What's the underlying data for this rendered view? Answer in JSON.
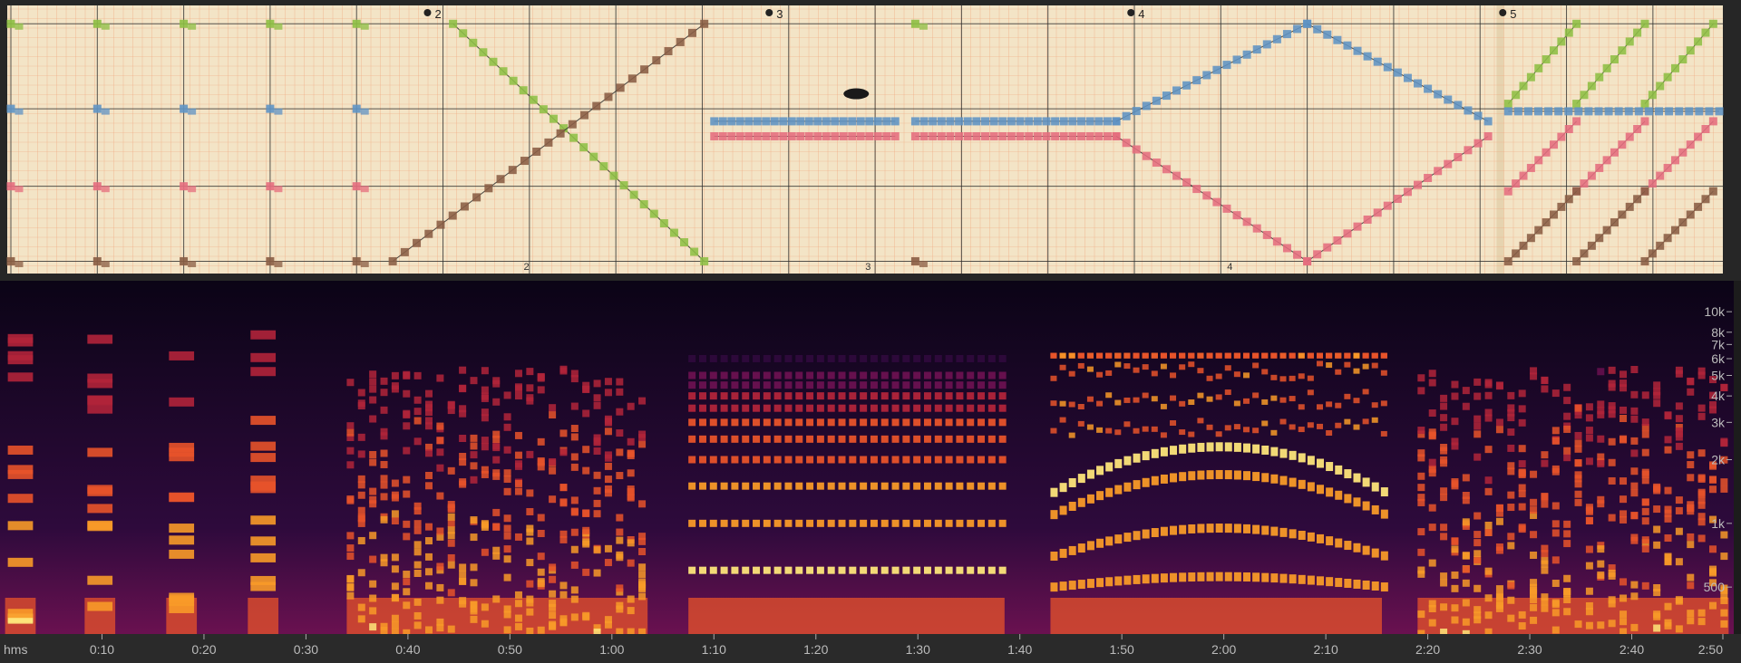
{
  "chart_data": [
    {
      "type": "scatter",
      "source": "hand-drawn graph-paper score",
      "section_markers": [
        "2",
        "3",
        "4",
        "5"
      ],
      "bottom_markers": [
        "2",
        "3",
        "4"
      ],
      "section_starts_s": [
        42,
        76,
        112,
        149
      ],
      "colors": {
        "green": "#8ebf44",
        "blue": "#5f93c4",
        "red": "#e56d7e",
        "brown": "#8a5d44",
        "paper": "#f3e4c6",
        "grid_minor": "#f0a27a",
        "grid_major": "#2d2d2d"
      },
      "series": [
        {
          "color": "green",
          "segments": [
            {
              "kind": "pulses",
              "start": 0,
              "end": 40,
              "step": 8.6,
              "level": 0.97
            },
            {
              "kind": "line",
              "t0": 44,
              "v0": 0.97,
              "t1": 69,
              "v1": 0.02,
              "step": 1.0
            },
            {
              "kind": "pulses",
              "start": 90,
              "end": 90,
              "step": 10,
              "level": 0.97
            },
            {
              "kind": "line",
              "t0": 149,
              "v0": 0.65,
              "t1": 155.8,
              "v1": 0.97,
              "step": 0.75
            },
            {
              "kind": "line",
              "t0": 155.8,
              "v0": 0.65,
              "t1": 162.6,
              "v1": 0.97,
              "step": 0.75
            },
            {
              "kind": "line",
              "t0": 162.6,
              "v0": 0.65,
              "t1": 169.4,
              "v1": 0.97,
              "step": 0.75
            }
          ]
        },
        {
          "color": "blue",
          "segments": [
            {
              "kind": "pulses",
              "start": 0,
              "end": 40,
              "step": 8.6,
              "level": 0.63
            },
            {
              "kind": "line",
              "t0": 70,
              "v0": 0.58,
              "t1": 88,
              "v1": 0.58,
              "step": 0.86
            },
            {
              "kind": "line",
              "t0": 90,
              "v0": 0.58,
              "t1": 110,
              "v1": 0.58,
              "step": 0.86
            },
            {
              "kind": "line",
              "t0": 110,
              "v0": 0.58,
              "t1": 129,
              "v1": 0.97,
              "step": 1.0
            },
            {
              "kind": "line",
              "t0": 129,
              "v0": 0.97,
              "t1": 147,
              "v1": 0.58,
              "step": 1.0
            },
            {
              "kind": "line",
              "t0": 149,
              "v0": 0.62,
              "t1": 170,
              "v1": 0.62,
              "step": 1.0
            }
          ]
        },
        {
          "color": "red",
          "segments": [
            {
              "kind": "pulses",
              "start": 0,
              "end": 40,
              "step": 8.6,
              "level": 0.32
            },
            {
              "kind": "line",
              "t0": 70,
              "v0": 0.52,
              "t1": 88,
              "v1": 0.52,
              "step": 0.86
            },
            {
              "kind": "line",
              "t0": 90,
              "v0": 0.52,
              "t1": 110,
              "v1": 0.52,
              "step": 0.86
            },
            {
              "kind": "line",
              "t0": 110,
              "v0": 0.52,
              "t1": 129,
              "v1": 0.02,
              "step": 1.0
            },
            {
              "kind": "line",
              "t0": 129,
              "v0": 0.02,
              "t1": 147,
              "v1": 0.52,
              "step": 1.0
            },
            {
              "kind": "line",
              "t0": 149,
              "v0": 0.3,
              "t1": 155.8,
              "v1": 0.58,
              "step": 0.75
            },
            {
              "kind": "line",
              "t0": 155.8,
              "v0": 0.3,
              "t1": 162.6,
              "v1": 0.58,
              "step": 0.75
            },
            {
              "kind": "line",
              "t0": 162.6,
              "v0": 0.3,
              "t1": 169.4,
              "v1": 0.58,
              "step": 0.75
            }
          ]
        },
        {
          "color": "brown",
          "segments": [
            {
              "kind": "pulses",
              "start": 0,
              "end": 40,
              "step": 8.6,
              "level": 0.02
            },
            {
              "kind": "line",
              "t0": 38,
              "v0": 0.02,
              "t1": 69,
              "v1": 0.97,
              "step": 1.2
            },
            {
              "kind": "pulses",
              "start": 90,
              "end": 90,
              "step": 10,
              "level": 0.02
            },
            {
              "kind": "line",
              "t0": 149,
              "v0": 0.02,
              "t1": 155.8,
              "v1": 0.3,
              "step": 0.75
            },
            {
              "kind": "line",
              "t0": 155.8,
              "v0": 0.02,
              "t1": 162.6,
              "v1": 0.3,
              "step": 0.75
            },
            {
              "kind": "line",
              "t0": 162.6,
              "v0": 0.02,
              "t1": 169.4,
              "v1": 0.3,
              "step": 0.75
            }
          ]
        }
      ]
    },
    {
      "type": "heatmap",
      "xlabel": "hms",
      "x_range_s": [
        0,
        170
      ],
      "x_ticks": [
        {
          "t": 10,
          "label": "0:10"
        },
        {
          "t": 20,
          "label": "0:20"
        },
        {
          "t": 30,
          "label": "0:30"
        },
        {
          "t": 40,
          "label": "0:40"
        },
        {
          "t": 50,
          "label": "0:50"
        },
        {
          "t": 60,
          "label": "1:00"
        },
        {
          "t": 70,
          "label": "1:10"
        },
        {
          "t": 80,
          "label": "1:20"
        },
        {
          "t": 90,
          "label": "1:30"
        },
        {
          "t": 100,
          "label": "1:40"
        },
        {
          "t": 110,
          "label": "1:50"
        },
        {
          "t": 120,
          "label": "2:00"
        },
        {
          "t": 130,
          "label": "2:10"
        },
        {
          "t": 140,
          "label": "2:20"
        },
        {
          "t": 150,
          "label": "2:30"
        },
        {
          "t": 160,
          "label": "2:40"
        },
        {
          "t": 170,
          "label": "2:50"
        }
      ],
      "y_scale": "log",
      "y_range_hz": [
        300,
        14000
      ],
      "y_ticks": [
        {
          "f": 500,
          "label": "500"
        },
        {
          "f": 1000,
          "label": "1k"
        },
        {
          "f": 2000,
          "label": "2k"
        },
        {
          "f": 3000,
          "label": "3k"
        },
        {
          "f": 4000,
          "label": "4k"
        },
        {
          "f": 5000,
          "label": "5k"
        },
        {
          "f": 6000,
          "label": "6k"
        },
        {
          "f": 7000,
          "label": "7k"
        },
        {
          "f": 8000,
          "label": "8k"
        },
        {
          "f": 10000,
          "label": "10k"
        }
      ],
      "colormap": [
        "#0b0416",
        "#2e0a3c",
        "#6a1150",
        "#b1243a",
        "#e8532a",
        "#f89a28",
        "#fde57a"
      ],
      "activity_regions_s": [
        {
          "start": 0.5,
          "end": 3.5,
          "kind": "burst"
        },
        {
          "start": 8.3,
          "end": 11.3,
          "kind": "burst"
        },
        {
          "start": 16.3,
          "end": 19.3,
          "kind": "burst"
        },
        {
          "start": 24.3,
          "end": 27.3,
          "kind": "burst"
        },
        {
          "start": 34.0,
          "end": 63.5,
          "kind": "dense"
        },
        {
          "start": 67.5,
          "end": 98.5,
          "kind": "harmonic"
        },
        {
          "start": 103.0,
          "end": 135.5,
          "kind": "sweep"
        },
        {
          "start": 139.0,
          "end": 169.5,
          "kind": "dense"
        }
      ],
      "harmonic_bands_hz": [
        600,
        1000,
        1500,
        2000,
        2500,
        3000,
        3500,
        4000,
        4500,
        5000,
        6000
      ],
      "sweep_bands": [
        {
          "f_edge": 1400,
          "f_peak": 2300
        },
        {
          "f_edge": 1100,
          "f_peak": 1700
        },
        {
          "f_edge": 700,
          "f_peak": 950
        },
        {
          "f_edge": 500,
          "f_peak": 560
        }
      ]
    }
  ]
}
